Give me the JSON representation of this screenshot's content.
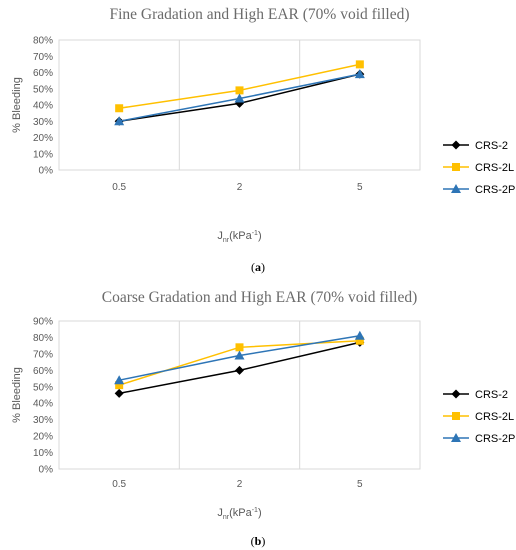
{
  "chart_data": [
    {
      "type": "line",
      "title": "Fine Gradation and High EAR (70% void filled)",
      "xlabel_main": "J",
      "xlabel_sub": "nr",
      "xlabel_unit": "(kPa",
      "xlabel_sup": "-1",
      "xlabel_close": ")",
      "ylabel": "% Bleeding",
      "categories": [
        "0.5",
        "2",
        "5"
      ],
      "ylim": [
        0,
        0.8
      ],
      "yticks": [
        0,
        0.1,
        0.2,
        0.3,
        0.4,
        0.5,
        0.6,
        0.7,
        0.8
      ],
      "yticklabels": [
        "0%",
        "10%",
        "20%",
        "30%",
        "40%",
        "50%",
        "60%",
        "70%",
        "80%"
      ],
      "series": [
        {
          "name": "CRS-2",
          "values": [
            0.3,
            0.41,
            0.59
          ],
          "color": "#000000",
          "marker": "diamond"
        },
        {
          "name": "CRS-2L",
          "values": [
            0.38,
            0.49,
            0.65
          ],
          "color": "#FFC000",
          "marker": "square"
        },
        {
          "name": "CRS-2P",
          "values": [
            0.3,
            0.44,
            0.59
          ],
          "color": "#2E75B6",
          "marker": "triangle"
        }
      ],
      "grid": "vertical",
      "legend": "right",
      "caption": "(a)",
      "caption_open": "(",
      "caption_letter": "a",
      "caption_close": ")"
    },
    {
      "type": "line",
      "title": "Coarse Gradation and High EAR (70% void filled)",
      "xlabel_main": "J",
      "xlabel_sub": "nr",
      "xlabel_unit": "(kPa",
      "xlabel_sup": "-1",
      "xlabel_close": ")",
      "ylabel": "% Bleeding",
      "categories": [
        "0.5",
        "2",
        "5"
      ],
      "ylim": [
        0,
        0.9
      ],
      "yticks": [
        0,
        0.1,
        0.2,
        0.3,
        0.4,
        0.5,
        0.6,
        0.7,
        0.8,
        0.9
      ],
      "yticklabels": [
        "0%",
        "10%",
        "20%",
        "30%",
        "40%",
        "50%",
        "60%",
        "70%",
        "80%",
        "90%"
      ],
      "series": [
        {
          "name": "CRS-2",
          "values": [
            0.46,
            0.6,
            0.77
          ],
          "color": "#000000",
          "marker": "diamond"
        },
        {
          "name": "CRS-2L",
          "values": [
            0.51,
            0.74,
            0.78
          ],
          "color": "#FFC000",
          "marker": "square"
        },
        {
          "name": "CRS-2P",
          "values": [
            0.54,
            0.69,
            0.81
          ],
          "color": "#2E75B6",
          "marker": "triangle"
        }
      ],
      "grid": "vertical",
      "legend": "right",
      "caption": "(b)",
      "caption_open": "(",
      "caption_letter": "b",
      "caption_close": ")"
    }
  ]
}
